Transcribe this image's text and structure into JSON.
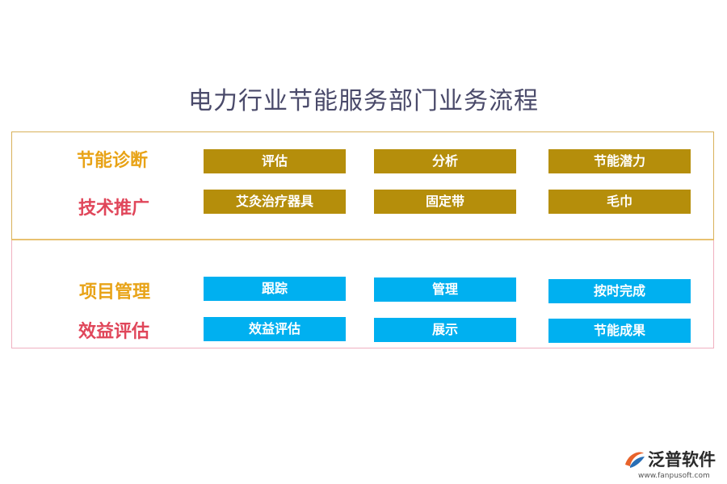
{
  "title": "电力行业节能服务部门业务流程",
  "colors": {
    "gold_box": "#b58e0b",
    "blue_box": "#00b0f0",
    "label_gold": "#e8a317",
    "label_red": "#e0465a",
    "top_border": "#d9b15a",
    "bottom_border": "#f0b0c0"
  },
  "rows": [
    {
      "label": "节能诊断",
      "items": [
        "评估",
        "分析",
        "节能潜力"
      ]
    },
    {
      "label": "技术推广",
      "items": [
        "艾灸治疗器具",
        "固定带",
        "毛巾"
      ]
    },
    {
      "label": "项目管理",
      "items": [
        "跟踪",
        "管理",
        "按时完成"
      ]
    },
    {
      "label": "效益评估",
      "items": [
        "效益评估",
        "展示",
        "节能成果"
      ]
    }
  ],
  "logo": {
    "name": "泛普软件",
    "url": "www.fanpusoft.com",
    "icon": "fanpu-logo-icon"
  }
}
